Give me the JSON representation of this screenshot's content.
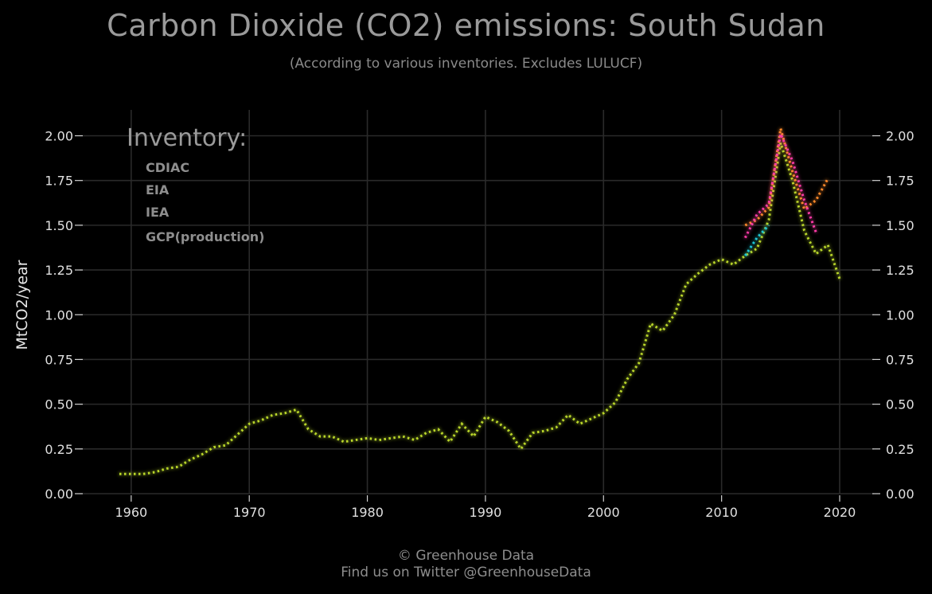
{
  "chart_data": {
    "type": "line",
    "title": "Carbon Dioxide (CO2) emissions: South Sudan",
    "subtitle": "(According to various inventories. Excludes LULUCF)",
    "ylabel": "MtCO2/year",
    "xlim": [
      1956,
      2023
    ],
    "ylim": [
      0,
      2.15
    ],
    "xticks": [
      1960,
      1970,
      1980,
      1990,
      2000,
      2010,
      2020
    ],
    "yticks": [
      0.0,
      0.25,
      0.5,
      0.75,
      1.0,
      1.25,
      1.5,
      1.75,
      2.0
    ],
    "ytick_labels": [
      "0.00",
      "0.25",
      "0.50",
      "0.75",
      "1.00",
      "1.25",
      "1.50",
      "1.75",
      "2.00"
    ],
    "grid": true,
    "legend_title": "Inventory:",
    "legend_position": "top-left",
    "series": [
      {
        "name": "CDIAC",
        "color": "#1fc8d6",
        "x": [
          2012,
          2013,
          2014
        ],
        "values": [
          1.33,
          1.43,
          1.5
        ]
      },
      {
        "name": "EIA",
        "color": "#ff3aa8",
        "x": [
          2012,
          2013,
          2014,
          2015,
          2016,
          2017,
          2018
        ],
        "values": [
          1.43,
          1.56,
          1.62,
          2.01,
          1.86,
          1.64,
          1.46
        ]
      },
      {
        "name": "IEA",
        "color": "#ff8a2a",
        "x": [
          2012,
          2013,
          2014,
          2015,
          2016,
          2017,
          2018,
          2019
        ],
        "values": [
          1.5,
          1.53,
          1.6,
          2.04,
          1.8,
          1.59,
          1.64,
          1.76
        ]
      },
      {
        "name": "GCP(production)",
        "color": "#b9d62a",
        "x": [
          1959,
          1960,
          1961,
          1962,
          1963,
          1964,
          1965,
          1966,
          1967,
          1968,
          1969,
          1970,
          1971,
          1972,
          1973,
          1974,
          1975,
          1976,
          1977,
          1978,
          1979,
          1980,
          1981,
          1982,
          1983,
          1984,
          1985,
          1986,
          1987,
          1988,
          1989,
          1990,
          1991,
          1992,
          1993,
          1994,
          1995,
          1996,
          1997,
          1998,
          1999,
          2000,
          2001,
          2002,
          2003,
          2004,
          2005,
          2006,
          2007,
          2008,
          2009,
          2010,
          2011,
          2012,
          2013,
          2014,
          2015,
          2016,
          2017,
          2018,
          2019,
          2020
        ],
        "values": [
          0.11,
          0.11,
          0.11,
          0.12,
          0.14,
          0.15,
          0.19,
          0.22,
          0.26,
          0.27,
          0.33,
          0.39,
          0.41,
          0.44,
          0.45,
          0.47,
          0.36,
          0.32,
          0.32,
          0.29,
          0.3,
          0.31,
          0.3,
          0.31,
          0.32,
          0.3,
          0.34,
          0.36,
          0.29,
          0.39,
          0.32,
          0.43,
          0.4,
          0.35,
          0.25,
          0.34,
          0.35,
          0.37,
          0.44,
          0.39,
          0.42,
          0.45,
          0.51,
          0.64,
          0.73,
          0.95,
          0.91,
          1.0,
          1.17,
          1.23,
          1.28,
          1.31,
          1.28,
          1.33,
          1.37,
          1.53,
          1.96,
          1.75,
          1.47,
          1.34,
          1.39,
          1.2
        ]
      }
    ]
  },
  "footer": {
    "line1": "© Greenhouse Data",
    "line2": "Find us on Twitter @GreenhouseData"
  }
}
